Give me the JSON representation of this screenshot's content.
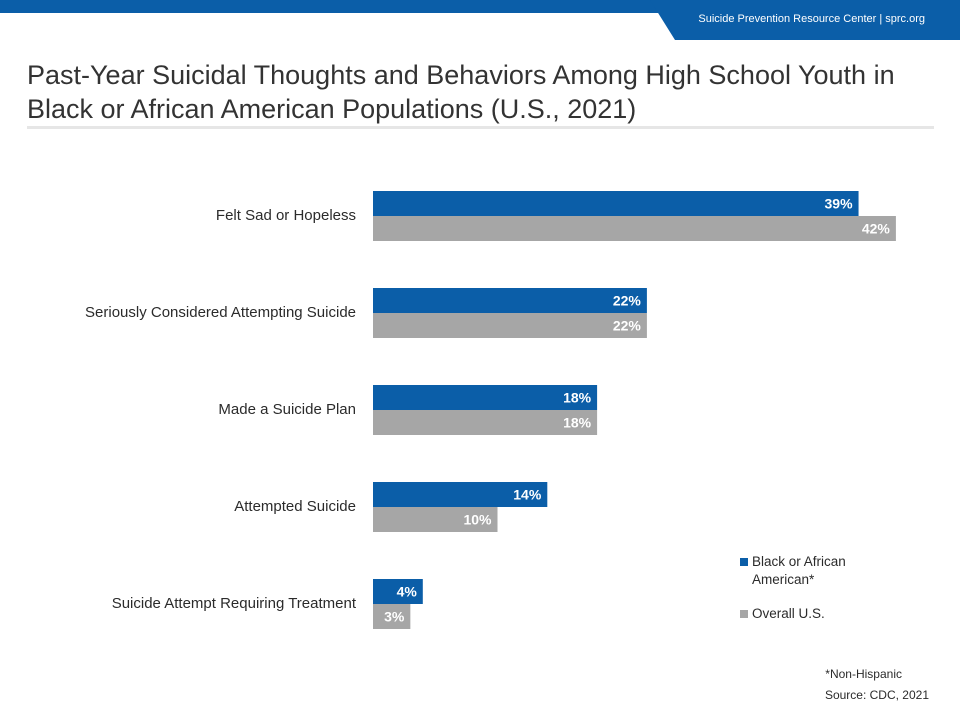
{
  "header": {
    "org_label": "Suicide Prevention Resource Center  |  sprc.org",
    "brand_color": "#0b5ea8"
  },
  "title": "Past-Year Suicidal Thoughts and Behaviors Among High School Youth in Black or African American Populations (U.S., 2021)",
  "chart_data": {
    "type": "bar",
    "orientation": "horizontal",
    "categories": [
      "Felt Sad or Hopeless",
      "Seriously Considered Attempting Suicide",
      "Made a Suicide Plan",
      "Attempted Suicide",
      "Suicide Attempt Requiring Treatment"
    ],
    "series": [
      {
        "name": "Black or African American*",
        "values": [
          39,
          22,
          18,
          14,
          4
        ],
        "color": "#0b5ea8"
      },
      {
        "name": "Overall U.S.",
        "values": [
          42,
          22,
          18,
          10,
          3
        ],
        "color": "#a6a6a6"
      }
    ],
    "data_labels": [
      [
        "39%",
        "22%",
        "18%",
        "14%",
        "4%"
      ],
      [
        "42%",
        "22%",
        "18%",
        "10%",
        "3%"
      ]
    ],
    "xlim": [
      0,
      50
    ],
    "grid": false,
    "legend_position": "bottom-right"
  },
  "footnote": "*Non-Hispanic",
  "source": "Source: CDC, 2021"
}
